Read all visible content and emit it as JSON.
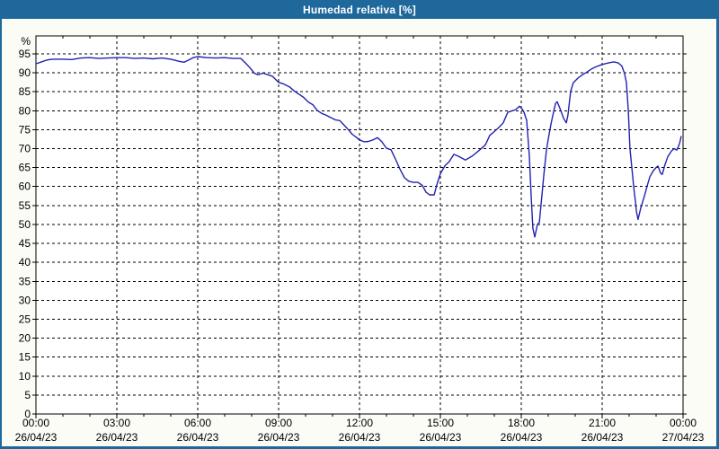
{
  "window": {
    "title": "Humedad relativa [%]"
  },
  "colors": {
    "titlebar_bg": "#1f689c",
    "titlebar_text": "#ffffff",
    "frame": "#1f689c",
    "panel_bg": "#fbfcf6",
    "plot_bg": "#ffffff",
    "grid": "#000000",
    "axis": "#000000",
    "label": "#000000",
    "line": "#2222b2"
  },
  "chart_data": {
    "type": "line",
    "title": "Humedad relativa [%]",
    "ylabel": "%",
    "xlabel": "",
    "ylim": [
      0,
      100
    ],
    "y_tick_step": 5,
    "y_ticks": [
      0,
      5,
      10,
      15,
      20,
      25,
      30,
      35,
      40,
      45,
      50,
      55,
      60,
      65,
      70,
      75,
      80,
      85,
      90,
      95
    ],
    "grid": "dashed",
    "legend_position": "none",
    "x_range_hours": [
      0,
      24
    ],
    "x_axis": {
      "major_tick_interval_hours": 3,
      "minor_tick_interval_hours": 1,
      "labels": [
        {
          "hour": 0,
          "time": "00:00",
          "date": "26/04/23"
        },
        {
          "hour": 3,
          "time": "03:00",
          "date": "26/04/23"
        },
        {
          "hour": 6,
          "time": "06:00",
          "date": "26/04/23"
        },
        {
          "hour": 9,
          "time": "09:00",
          "date": "26/04/23"
        },
        {
          "hour": 12,
          "time": "12:00",
          "date": "26/04/23"
        },
        {
          "hour": 15,
          "time": "15:00",
          "date": "26/04/23"
        },
        {
          "hour": 18,
          "time": "18:00",
          "date": "26/04/23"
        },
        {
          "hour": 21,
          "time": "21:00",
          "date": "26/04/23"
        },
        {
          "hour": 24,
          "time": "00:00",
          "date": "27/04/23"
        }
      ]
    },
    "series": [
      {
        "name": "Humedad relativa [%]",
        "x_hours": [
          0,
          0.17,
          0.33,
          0.5,
          0.67,
          1.0,
          1.33,
          1.67,
          2.0,
          2.33,
          2.67,
          3.0,
          3.33,
          3.67,
          4.0,
          4.33,
          4.67,
          5.0,
          5.33,
          5.5,
          5.67,
          5.83,
          6.0,
          6.33,
          6.67,
          7.0,
          7.33,
          7.6,
          7.77,
          7.93,
          8.1,
          8.23,
          8.43,
          8.6,
          8.77,
          9.0,
          9.17,
          9.4,
          9.6,
          9.77,
          9.93,
          10.1,
          10.27,
          10.43,
          10.6,
          10.77,
          10.93,
          11.1,
          11.27,
          11.43,
          11.6,
          11.73,
          11.9,
          12.0,
          12.17,
          12.33,
          12.5,
          12.67,
          12.83,
          13.0,
          13.17,
          13.33,
          13.5,
          13.67,
          13.83,
          14.0,
          14.17,
          14.33,
          14.47,
          14.6,
          14.77,
          14.87,
          15.0,
          15.17,
          15.33,
          15.5,
          15.67,
          15.93,
          16.17,
          16.33,
          16.5,
          16.67,
          16.83,
          17.0,
          17.17,
          17.33,
          17.5,
          17.67,
          17.8,
          17.93,
          18.03,
          18.1,
          18.2,
          18.3,
          18.37,
          18.43,
          18.5,
          18.6,
          18.67,
          18.77,
          18.83,
          18.93,
          19.0,
          19.1,
          19.17,
          19.27,
          19.33,
          19.43,
          19.57,
          19.67,
          19.73,
          19.83,
          19.93,
          20.1,
          20.27,
          20.43,
          20.6,
          20.77,
          21.0,
          21.23,
          21.43,
          21.6,
          21.73,
          21.83,
          21.9,
          21.97,
          22.03,
          22.1,
          22.17,
          22.23,
          22.27,
          22.33,
          22.43,
          22.57,
          22.67,
          22.77,
          22.9,
          23.0,
          23.07,
          23.17,
          23.23,
          23.33,
          23.43,
          23.57,
          23.67,
          23.77,
          23.87,
          23.93
        ],
        "values": [
          92.4,
          92.8,
          93.2,
          93.5,
          93.6,
          93.6,
          93.5,
          93.9,
          94.0,
          93.8,
          93.9,
          94.0,
          94.0,
          93.8,
          93.9,
          93.7,
          93.9,
          93.6,
          93.0,
          92.8,
          93.4,
          94.0,
          94.3,
          94.0,
          93.9,
          94.0,
          93.8,
          93.8,
          92.6,
          91.4,
          89.9,
          89.5,
          89.9,
          89.5,
          89.1,
          87.5,
          87.1,
          86.3,
          85.1,
          84.3,
          83.5,
          82.3,
          81.6,
          80.1,
          79.3,
          78.8,
          78.2,
          77.6,
          77.4,
          76.2,
          74.9,
          73.8,
          72.9,
          72.3,
          71.8,
          71.9,
          72.3,
          72.9,
          71.8,
          70.1,
          69.7,
          67.3,
          64.6,
          62.3,
          61.4,
          61.1,
          61.1,
          60.3,
          58.5,
          57.8,
          57.8,
          60.5,
          63.4,
          65.5,
          66.6,
          68.5,
          68.0,
          67.0,
          68.0,
          68.9,
          69.9,
          71.0,
          73.5,
          74.5,
          75.6,
          76.8,
          79.6,
          80.0,
          80.3,
          81.2,
          80.5,
          79.6,
          77.5,
          68.0,
          57.0,
          49.0,
          46.7,
          50.0,
          50.5,
          58.0,
          62.6,
          69.4,
          72.5,
          76.4,
          78.8,
          81.9,
          82.4,
          80.7,
          78.0,
          76.8,
          78.8,
          85.1,
          87.4,
          88.6,
          89.5,
          90.2,
          91.0,
          91.6,
          92.2,
          92.6,
          92.9,
          92.6,
          91.8,
          89.8,
          87.4,
          80.0,
          70.1,
          65.0,
          59.9,
          56.3,
          53.5,
          51.3,
          54.3,
          57.6,
          60.2,
          62.6,
          64.2,
          65.0,
          65.4,
          63.5,
          63.2,
          65.8,
          67.8,
          69.4,
          70.0,
          69.6,
          71.3,
          73.2
        ]
      }
    ]
  }
}
